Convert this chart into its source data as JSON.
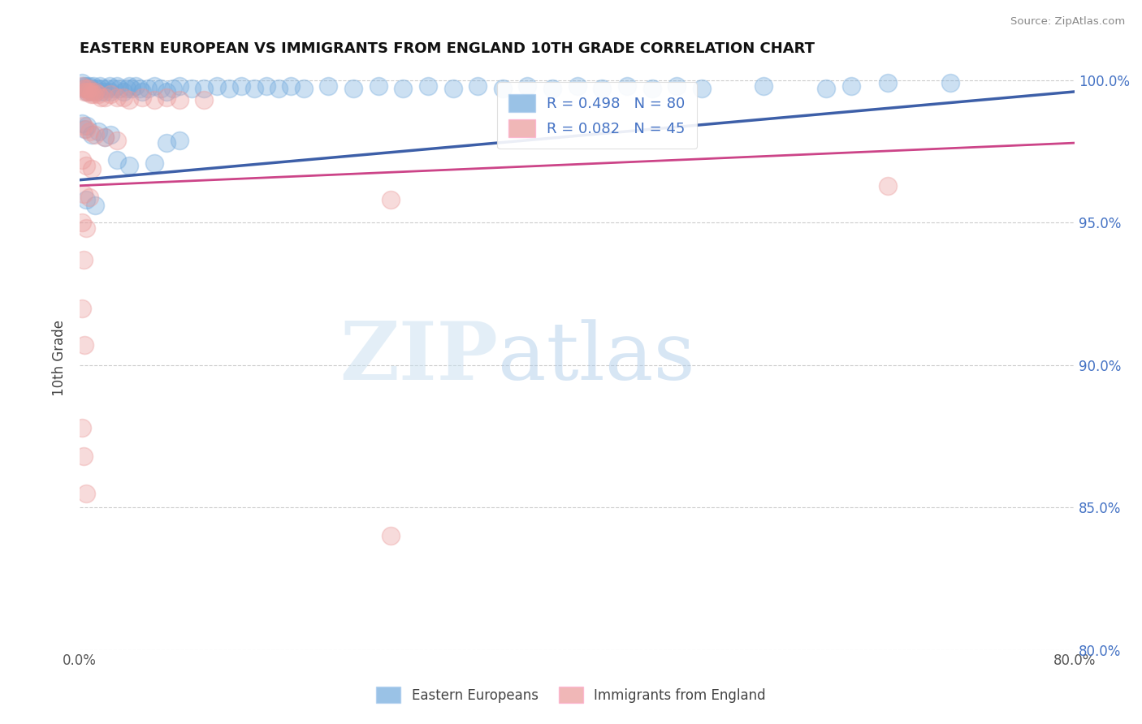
{
  "title": "EASTERN EUROPEAN VS IMMIGRANTS FROM ENGLAND 10TH GRADE CORRELATION CHART",
  "source": "Source: ZipAtlas.com",
  "ylabel": "10th Grade",
  "xmin": 0.0,
  "xmax": 0.8,
  "ymin": 0.8,
  "ymax": 1.005,
  "y_ticks": [
    0.8,
    0.85,
    0.9,
    0.95,
    1.0
  ],
  "y_tick_labels": [
    "80.0%",
    "85.0%",
    "90.0%",
    "95.0%",
    "100.0%"
  ],
  "blue_R": 0.498,
  "blue_N": 80,
  "pink_R": 0.082,
  "pink_N": 45,
  "blue_color": "#6fa8dc",
  "pink_color": "#ea9999",
  "blue_line_color": "#3d5fa8",
  "pink_line_color": "#cc4488",
  "watermark_zip": "ZIP",
  "watermark_atlas": "atlas",
  "legend_label_blue": "Eastern Europeans",
  "legend_label_pink": "Immigrants from England",
  "blue_scatter": [
    [
      0.002,
      0.999
    ],
    [
      0.003,
      0.998
    ],
    [
      0.004,
      0.997
    ],
    [
      0.005,
      0.998
    ],
    [
      0.006,
      0.996
    ],
    [
      0.007,
      0.997
    ],
    [
      0.008,
      0.998
    ],
    [
      0.009,
      0.997
    ],
    [
      0.01,
      0.996
    ],
    [
      0.011,
      0.998
    ],
    [
      0.012,
      0.997
    ],
    [
      0.013,
      0.996
    ],
    [
      0.015,
      0.997
    ],
    [
      0.016,
      0.998
    ],
    [
      0.017,
      0.996
    ],
    [
      0.018,
      0.997
    ],
    [
      0.02,
      0.996
    ],
    [
      0.022,
      0.997
    ],
    [
      0.024,
      0.998
    ],
    [
      0.025,
      0.996
    ],
    [
      0.027,
      0.997
    ],
    [
      0.03,
      0.998
    ],
    [
      0.032,
      0.997
    ],
    [
      0.035,
      0.996
    ],
    [
      0.038,
      0.997
    ],
    [
      0.04,
      0.998
    ],
    [
      0.042,
      0.997
    ],
    [
      0.045,
      0.998
    ],
    [
      0.048,
      0.997
    ],
    [
      0.05,
      0.996
    ],
    [
      0.055,
      0.997
    ],
    [
      0.06,
      0.998
    ],
    [
      0.065,
      0.997
    ],
    [
      0.07,
      0.996
    ],
    [
      0.075,
      0.997
    ],
    [
      0.08,
      0.998
    ],
    [
      0.09,
      0.997
    ],
    [
      0.1,
      0.997
    ],
    [
      0.11,
      0.998
    ],
    [
      0.12,
      0.997
    ],
    [
      0.13,
      0.998
    ],
    [
      0.14,
      0.997
    ],
    [
      0.15,
      0.998
    ],
    [
      0.16,
      0.997
    ],
    [
      0.17,
      0.998
    ],
    [
      0.18,
      0.997
    ],
    [
      0.2,
      0.998
    ],
    [
      0.22,
      0.997
    ],
    [
      0.24,
      0.998
    ],
    [
      0.26,
      0.997
    ],
    [
      0.28,
      0.998
    ],
    [
      0.3,
      0.997
    ],
    [
      0.32,
      0.998
    ],
    [
      0.34,
      0.997
    ],
    [
      0.36,
      0.998
    ],
    [
      0.38,
      0.997
    ],
    [
      0.4,
      0.998
    ],
    [
      0.42,
      0.997
    ],
    [
      0.44,
      0.998
    ],
    [
      0.46,
      0.997
    ],
    [
      0.48,
      0.998
    ],
    [
      0.5,
      0.997
    ],
    [
      0.55,
      0.998
    ],
    [
      0.6,
      0.997
    ],
    [
      0.62,
      0.998
    ],
    [
      0.65,
      0.999
    ],
    [
      0.7,
      0.999
    ],
    [
      0.002,
      0.985
    ],
    [
      0.004,
      0.983
    ],
    [
      0.006,
      0.984
    ],
    [
      0.01,
      0.981
    ],
    [
      0.015,
      0.982
    ],
    [
      0.02,
      0.98
    ],
    [
      0.025,
      0.981
    ],
    [
      0.07,
      0.978
    ],
    [
      0.08,
      0.979
    ],
    [
      0.03,
      0.972
    ],
    [
      0.04,
      0.97
    ],
    [
      0.06,
      0.971
    ],
    [
      0.005,
      0.958
    ],
    [
      0.012,
      0.956
    ]
  ],
  "pink_scatter": [
    [
      0.002,
      0.998
    ],
    [
      0.003,
      0.997
    ],
    [
      0.004,
      0.996
    ],
    [
      0.005,
      0.997
    ],
    [
      0.006,
      0.996
    ],
    [
      0.007,
      0.997
    ],
    [
      0.008,
      0.996
    ],
    [
      0.009,
      0.995
    ],
    [
      0.01,
      0.996
    ],
    [
      0.011,
      0.995
    ],
    [
      0.012,
      0.996
    ],
    [
      0.015,
      0.995
    ],
    [
      0.017,
      0.994
    ],
    [
      0.02,
      0.994
    ],
    [
      0.025,
      0.995
    ],
    [
      0.03,
      0.994
    ],
    [
      0.035,
      0.994
    ],
    [
      0.04,
      0.993
    ],
    [
      0.05,
      0.994
    ],
    [
      0.06,
      0.993
    ],
    [
      0.07,
      0.994
    ],
    [
      0.08,
      0.993
    ],
    [
      0.1,
      0.993
    ],
    [
      0.003,
      0.984
    ],
    [
      0.005,
      0.983
    ],
    [
      0.008,
      0.982
    ],
    [
      0.012,
      0.981
    ],
    [
      0.02,
      0.98
    ],
    [
      0.03,
      0.979
    ],
    [
      0.002,
      0.972
    ],
    [
      0.005,
      0.97
    ],
    [
      0.01,
      0.969
    ],
    [
      0.003,
      0.96
    ],
    [
      0.008,
      0.959
    ],
    [
      0.002,
      0.95
    ],
    [
      0.005,
      0.948
    ],
    [
      0.003,
      0.937
    ],
    [
      0.002,
      0.92
    ],
    [
      0.004,
      0.907
    ],
    [
      0.002,
      0.878
    ],
    [
      0.003,
      0.868
    ],
    [
      0.005,
      0.855
    ],
    [
      0.25,
      0.958
    ],
    [
      0.65,
      0.963
    ],
    [
      0.25,
      0.84
    ]
  ],
  "blue_line_x": [
    0.0,
    0.8
  ],
  "blue_line_y": [
    0.965,
    0.996
  ],
  "pink_line_x": [
    0.0,
    0.8
  ],
  "pink_line_y": [
    0.963,
    0.978
  ]
}
